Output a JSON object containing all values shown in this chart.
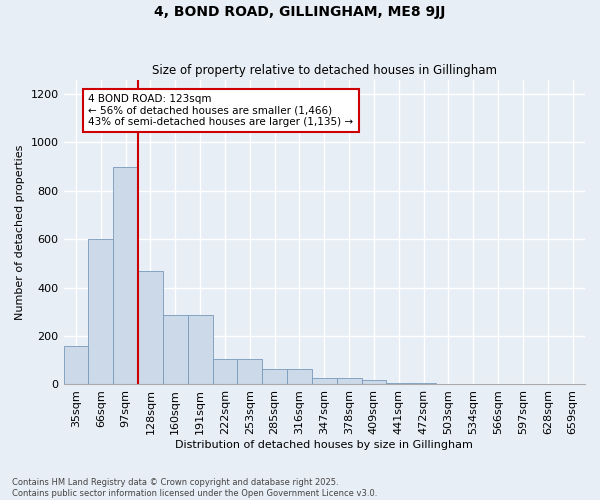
{
  "title": "4, BOND ROAD, GILLINGHAM, ME8 9JJ",
  "subtitle": "Size of property relative to detached houses in Gillingham",
  "xlabel": "Distribution of detached houses by size in Gillingham",
  "ylabel": "Number of detached properties",
  "bar_color": "#ccd9e8",
  "bar_edge_color": "#7799bb",
  "background_color": "#e8eef5",
  "grid_color": "#ffffff",
  "categories": [
    "35sqm",
    "66sqm",
    "97sqm",
    "128sqm",
    "160sqm",
    "191sqm",
    "222sqm",
    "253sqm",
    "285sqm",
    "316sqm",
    "347sqm",
    "378sqm",
    "409sqm",
    "441sqm",
    "472sqm",
    "503sqm",
    "534sqm",
    "566sqm",
    "597sqm",
    "628sqm",
    "659sqm"
  ],
  "values": [
    160,
    600,
    900,
    470,
    285,
    285,
    105,
    105,
    63,
    63,
    25,
    25,
    18,
    5,
    5,
    2,
    2,
    0,
    0,
    0,
    0
  ],
  "ylim": [
    0,
    1260
  ],
  "yticks": [
    0,
    200,
    400,
    600,
    800,
    1000,
    1200
  ],
  "vline_x": 2.5,
  "marker_label": "4 BOND ROAD: 123sqm",
  "annotation_line1": "← 56% of detached houses are smaller (1,466)",
  "annotation_line2": "43% of semi-detached houses are larger (1,135) →",
  "vline_color": "#cc0000",
  "annotation_box_edgecolor": "#cc0000",
  "footnote1": "Contains HM Land Registry data © Crown copyright and database right 2025.",
  "footnote2": "Contains public sector information licensed under the Open Government Licence v3.0."
}
